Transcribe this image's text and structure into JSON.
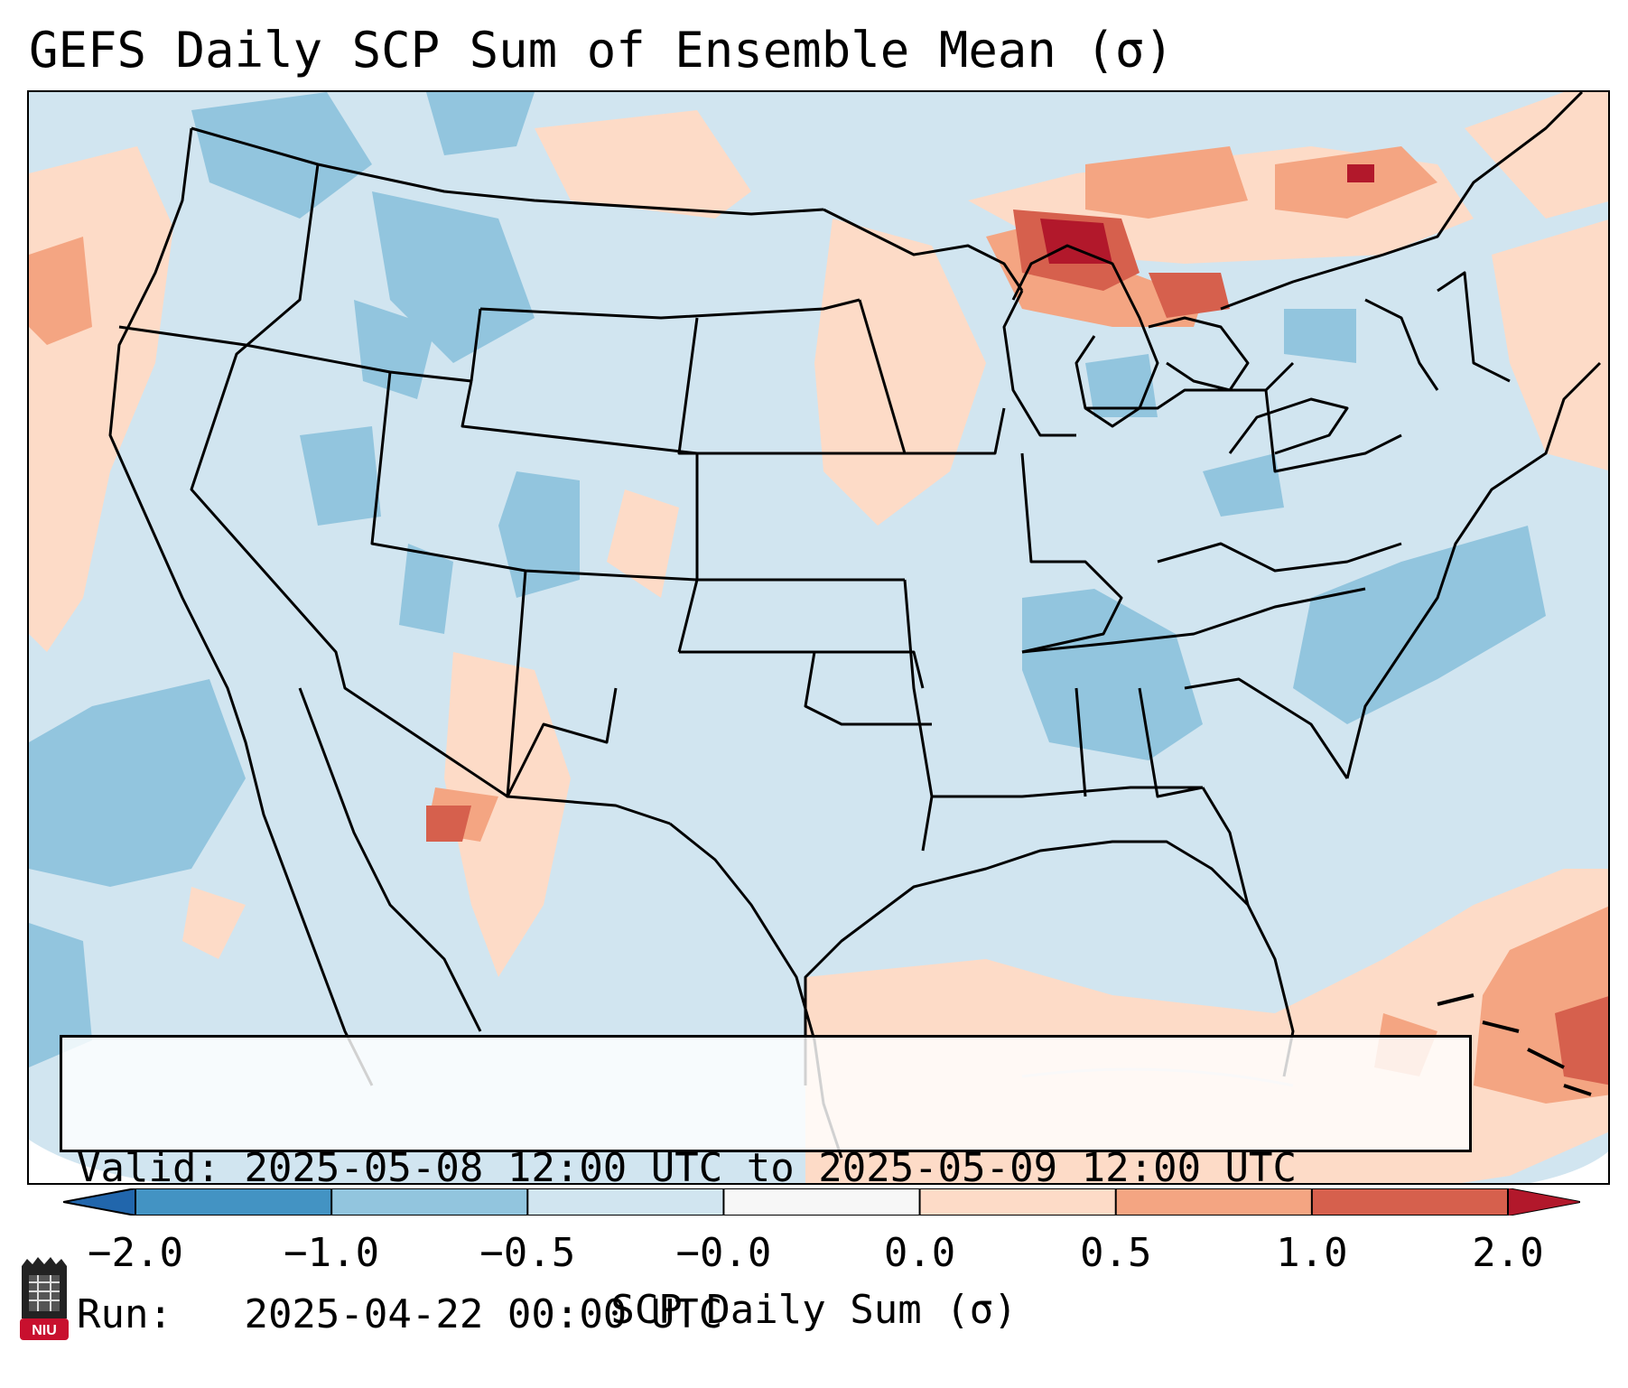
{
  "title": "GEFS Daily SCP Sum of Ensemble Mean (σ)",
  "info": {
    "valid_label": "Valid:",
    "valid_value": "2025-05-08 12:00 UTC to 2025-05-09 12:00 UTC",
    "run_label": "Run:",
    "run_value": "2025-04-22 00:00 UTC"
  },
  "colorbar": {
    "label": "SCP Daily Sum (σ)",
    "ticks": [
      "−2.0",
      "−1.0",
      "−0.5",
      "−0.0",
      "0.0",
      "0.5",
      "1.0",
      "2.0"
    ],
    "colors": [
      "#4393c3",
      "#92c5de",
      "#d1e5f0",
      "#f7f7f7",
      "#fddbc7",
      "#f4a582",
      "#d6604d"
    ],
    "extend_low_color": "#2166ac",
    "extend_high_color": "#b2182b"
  },
  "map": {
    "background_color": "#d1e5f0",
    "outside_color": "#ffffff"
  },
  "logo": {
    "text": "NIU",
    "color": "#c8102e"
  }
}
